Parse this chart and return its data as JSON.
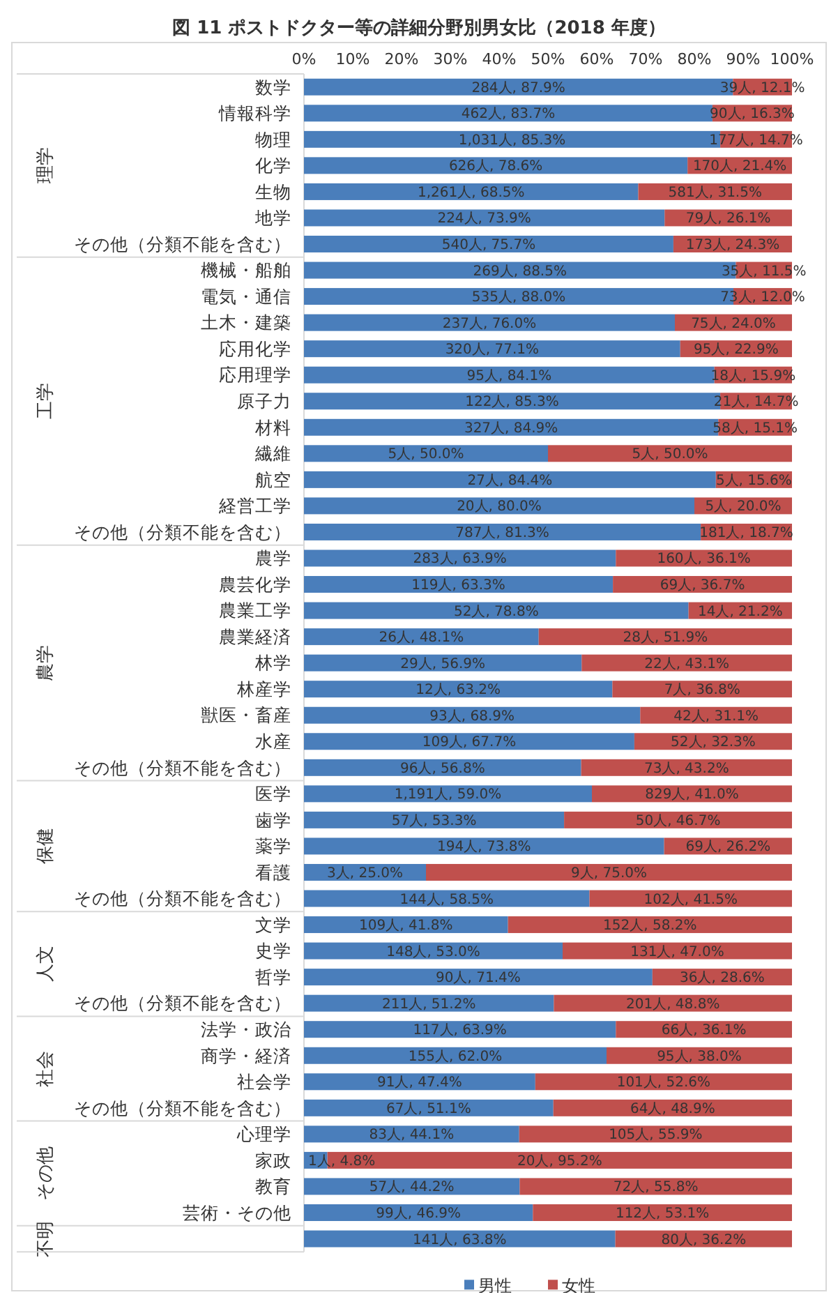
{
  "chart_data": {
    "type": "bar",
    "orientation": "horizontal",
    "stacked": true,
    "title": "図 11 ポストドクター等の詳細分野別男女比（2018 年度）",
    "categories": [
      "数学",
      "情報科学",
      "物理",
      "化学",
      "生物",
      "地学",
      "その他（分類不能を含む）",
      "機械・船舶",
      "電気・通信",
      "土木・建築",
      "応用化学",
      "応用理学",
      "原子力",
      "材料",
      "繊維",
      "航空",
      "経営工学",
      "その他（分類不能を含む）",
      "農学",
      "農芸化学",
      "農業工学",
      "農業経済",
      "林学",
      "林産学",
      "獣医・畜産",
      "水産",
      "その他（分類不能を含む）",
      "医学",
      "歯学",
      "薬学",
      "看護",
      "その他（分類不能を含む）",
      "文学",
      "史学",
      "哲学",
      "その他（分類不能を含む）",
      "法学・政治",
      "商学・経済",
      "社会学",
      "その他（分類不能を含む）",
      "心理学",
      "家政",
      "教育",
      "芸術・その他",
      null
    ],
    "series": [
      {
        "name": "男性",
        "color": "#4a7ebb",
        "values": [
          87.9,
          83.7,
          85.3,
          78.6,
          68.5,
          73.9,
          75.7,
          88.5,
          88.0,
          76.0,
          77.1,
          84.1,
          85.3,
          84.9,
          50.0,
          84.4,
          80.0,
          81.3,
          63.9,
          63.3,
          78.8,
          48.1,
          56.9,
          63.2,
          68.9,
          67.7,
          56.8,
          59.0,
          53.3,
          73.8,
          25.0,
          58.5,
          41.8,
          53.0,
          71.4,
          51.2,
          63.9,
          62.0,
          47.4,
          51.1,
          44.1,
          4.8,
          44.2,
          46.9,
          63.8
        ],
        "value_labels": [
          "284人, 87.9%",
          "462人, 83.7%",
          "1,031人, 85.3%",
          "626人, 78.6%",
          "1,261人, 68.5%",
          "224人, 73.9%",
          "540人, 75.7%",
          "269人, 88.5%",
          "535人, 88.0%",
          "237人, 76.0%",
          "320人, 77.1%",
          "95人, 84.1%",
          "122人, 85.3%",
          "327人, 84.9%",
          "5人, 50.0%",
          "27人, 84.4%",
          "20人, 80.0%",
          "787人, 81.3%",
          "283人, 63.9%",
          "119人, 63.3%",
          "52人, 78.8%",
          "26人, 48.1%",
          "29人, 56.9%",
          "12人, 63.2%",
          "93人, 68.9%",
          "109人, 67.7%",
          "96人, 56.8%",
          "1,191人, 59.0%",
          "57人, 53.3%",
          "194人, 73.8%",
          "3人, 25.0%",
          "144人, 58.5%",
          "109人, 41.8%",
          "148人, 53.0%",
          "90人, 71.4%",
          "211人, 51.2%",
          "117人, 63.9%",
          "155人, 62.0%",
          "91人, 47.4%",
          "67人, 51.1%",
          "83人, 44.1%",
          "1人, 4.8%",
          "57人, 44.2%",
          "99人, 46.9%",
          "141人, 63.8%"
        ]
      },
      {
        "name": "女性",
        "color": "#c0504d",
        "values": [
          12.1,
          16.3,
          14.7,
          21.4,
          31.5,
          26.1,
          24.3,
          11.5,
          12.0,
          24.0,
          22.9,
          15.9,
          14.7,
          15.1,
          50.0,
          15.6,
          20.0,
          18.7,
          36.1,
          36.7,
          21.2,
          51.9,
          43.1,
          36.8,
          31.1,
          32.3,
          43.2,
          41.0,
          46.7,
          26.2,
          75.0,
          41.5,
          58.2,
          47.0,
          28.6,
          48.8,
          36.1,
          38.0,
          52.6,
          48.9,
          55.9,
          95.2,
          55.8,
          53.1,
          36.2
        ],
        "value_labels": [
          "39人, 12.1%",
          "90人, 16.3%",
          "177人, 14.7%",
          "170人, 21.4%",
          "581人, 31.5%",
          "79人, 26.1%",
          "173人, 24.3%",
          "35人, 11.5%",
          "73人, 12.0%",
          "75人, 24.0%",
          "95人, 22.9%",
          "18人, 15.9%",
          "21人, 14.7%",
          "58人, 15.1%",
          "5人, 50.0%",
          "5人, 15.6%",
          "5人, 20.0%",
          "181人, 18.7%",
          "160人, 36.1%",
          "69人, 36.7%",
          "14人, 21.2%",
          "28人, 51.9%",
          "22人, 43.1%",
          "7人, 36.8%",
          "42人, 31.1%",
          "52人, 32.3%",
          "73人, 43.2%",
          "829人, 41.0%",
          "50人, 46.7%",
          "69人, 26.2%",
          "9人, 75.0%",
          "102人, 41.5%",
          "152人, 58.2%",
          "131人, 47.0%",
          "36人, 28.6%",
          "201人, 48.8%",
          "66人, 36.1%",
          "95人, 38.0%",
          "101人, 52.6%",
          "64人, 48.9%",
          "105人, 55.9%",
          "20人, 95.2%",
          "72人, 55.8%",
          "112人, 53.1%",
          "80人, 36.2%"
        ]
      }
    ],
    "xlim": [
      0,
      100
    ],
    "xticks": [
      {
        "value": 0,
        "label": "0%"
      },
      {
        "value": 10,
        "label": "10%"
      },
      {
        "value": 20,
        "label": "20%"
      },
      {
        "value": 30,
        "label": "30%"
      },
      {
        "value": 40,
        "label": "40%"
      },
      {
        "value": 50,
        "label": "50%"
      },
      {
        "value": 60,
        "label": "60%"
      },
      {
        "value": 70,
        "label": "70%"
      },
      {
        "value": 80,
        "label": "80%"
      },
      {
        "value": 90,
        "label": "90%"
      },
      {
        "value": 100,
        "label": "100%"
      }
    ],
    "annotations": [
      "理学",
      "工学",
      "農学",
      "保健",
      "人文",
      "社会",
      "その他",
      "不明"
    ],
    "legend": "bottom"
  }
}
